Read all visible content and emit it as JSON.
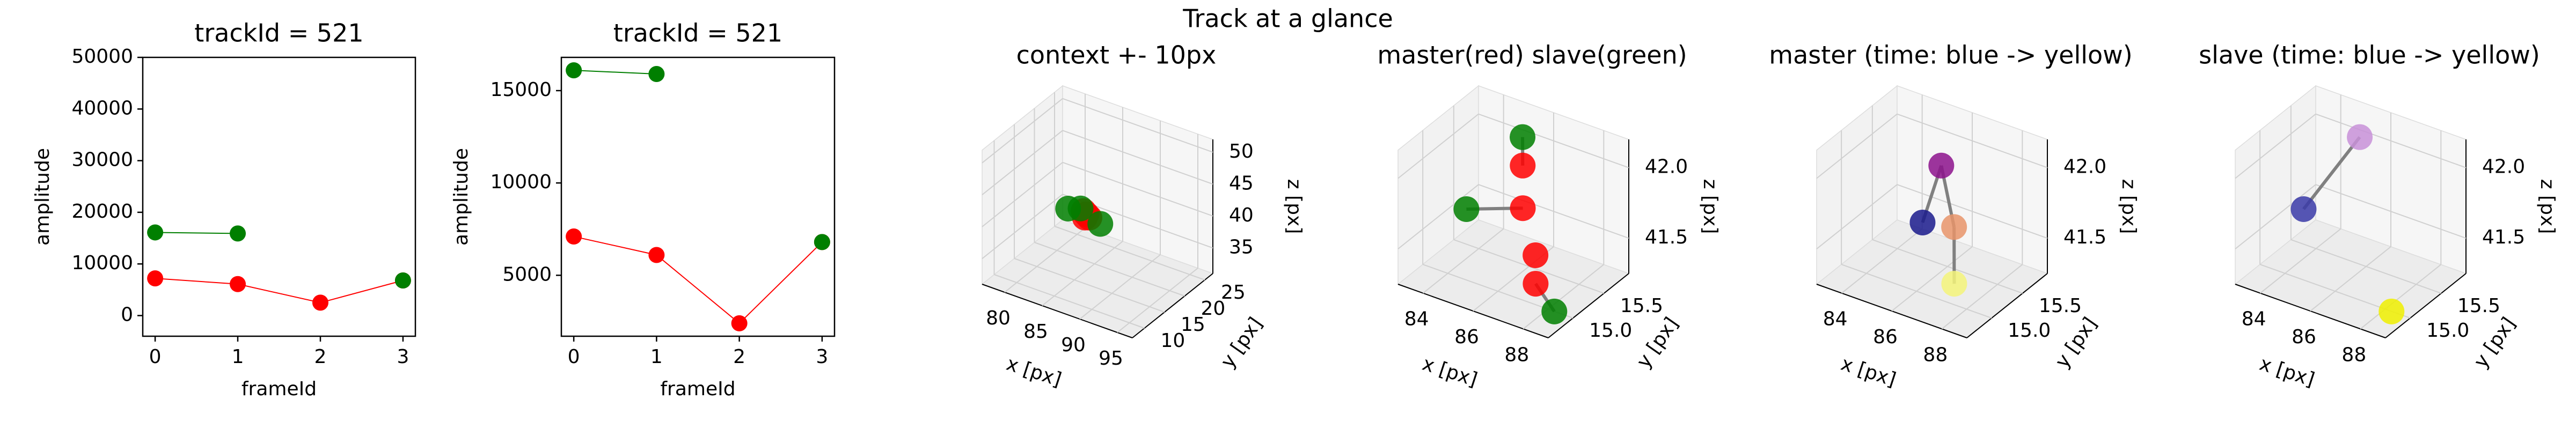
{
  "title": "Track at a glance",
  "chart_data": [
    {
      "type": "line",
      "title": "trackId = 521",
      "xlabel": "frameId",
      "ylabel": "amplitude",
      "x": [
        0,
        1,
        2,
        3
      ],
      "xlim": [
        -0.15,
        3.15
      ],
      "xticks": [
        0,
        1,
        2,
        3
      ],
      "ylim": [
        -4000,
        50000
      ],
      "yticks": [
        0,
        10000,
        20000,
        30000,
        40000,
        50000
      ],
      "series": [
        {
          "color": "#ff0000",
          "values": [
            7200,
            6100,
            2500,
            6800
          ]
        },
        {
          "color": "#007f00",
          "values": [
            16100,
            15900,
            null,
            6800
          ]
        }
      ]
    },
    {
      "type": "line",
      "title": "trackId = 521",
      "xlabel": "frameId",
      "ylabel": "amplitude",
      "x": [
        0,
        1,
        2,
        3
      ],
      "xlim": [
        -0.15,
        3.15
      ],
      "xticks": [
        0,
        1,
        2,
        3
      ],
      "ylim": [
        1700,
        16800
      ],
      "yticks": [
        5000,
        10000,
        15000
      ],
      "series": [
        {
          "color": "#ff0000",
          "values": [
            7100,
            6100,
            2400,
            6800
          ]
        },
        {
          "color": "#007f00",
          "values": [
            16100,
            15900,
            null,
            6800
          ]
        }
      ]
    },
    {
      "type": "scatter3d",
      "title": "context +- 10px",
      "xlabel": "x [px]",
      "ylabel": "y [px]",
      "zlabel": "z [px]",
      "xlim": [
        77,
        97
      ],
      "xticks": [
        80,
        85,
        90,
        95
      ],
      "ylim": [
        7,
        27
      ],
      "yticks": [
        10,
        15,
        20,
        25
      ],
      "zlim": [
        31,
        52
      ],
      "zticks": [
        35,
        40,
        45,
        50
      ],
      "lines": "none",
      "series": [
        {
          "color": "#ff0000",
          "x": [
            86,
            86.5,
            87,
            86.5
          ],
          "y": [
            15.4,
            15.2,
            15.0,
            14.8
          ],
          "z": [
            42,
            41.8,
            41.6,
            41.5
          ]
        },
        {
          "color": "#007f00",
          "x": [
            85.5,
            84,
            null,
            88.5
          ],
          "y": [
            15.6,
            15.3,
            null,
            14.9
          ],
          "z": [
            42.1,
            41.6,
            null,
            41.3
          ]
        }
      ]
    },
    {
      "type": "scatter3d",
      "title": "master(red) slave(green)",
      "xlabel": "x [px]",
      "ylabel": "y [px]",
      "zlabel": "z [px]",
      "xlim": [
        83,
        89
      ],
      "xticks": [
        84,
        86,
        88
      ],
      "ylim": [
        14.6,
        15.9
      ],
      "yticks": [
        {
          "value": 15,
          "label": "15.0"
        },
        15.5
      ],
      "zlim": [
        41.25,
        42.2
      ],
      "zticks": [
        41.5,
        {
          "value": 42,
          "label": "42.0"
        }
      ],
      "lines": "pairs",
      "series": [
        {
          "color": "#ff0000",
          "x": [
            86,
            86.5,
            87.5,
            88
          ],
          "y": [
            15.4,
            15.2,
            15.0,
            14.8
          ],
          "z": [
            42,
            41.8,
            41.6,
            41.5
          ]
        },
        {
          "color": "#007f00",
          "x": [
            85.5,
            84,
            null,
            88.5
          ],
          "y": [
            15.6,
            15.3,
            null,
            14.9
          ],
          "z": [
            42.1,
            41.6,
            null,
            41.3
          ]
        }
      ]
    },
    {
      "type": "scatter3d",
      "title": "master (time: blue -> yellow)",
      "xlabel": "x [px]",
      "ylabel": "y [px]",
      "zlabel": "z [px]",
      "xlim": [
        83,
        89
      ],
      "xticks": [
        84,
        86,
        88
      ],
      "ylim": [
        14.6,
        15.9
      ],
      "yticks": [
        {
          "value": 15,
          "label": "15.0"
        },
        15.5
      ],
      "zlim": [
        41.25,
        42.2
      ],
      "zticks": [
        41.5,
        {
          "value": 42,
          "label": "42.0"
        }
      ],
      "lines": "trajectory",
      "series": [
        {
          "colors": [
            "#1a1a8c",
            "#8c128c",
            "#e8946a",
            "#f4f47a"
          ],
          "x": [
            85.5,
            86,
            87.5,
            88
          ],
          "y": [
            15.3,
            15.4,
            15.0,
            14.8
          ],
          "z": [
            41.6,
            42,
            41.8,
            41.5
          ]
        }
      ]
    },
    {
      "type": "scatter3d",
      "title": "slave (time: blue -> yellow)",
      "xlabel": "x [px]",
      "ylabel": "y [px]",
      "zlabel": "z [px]",
      "xlim": [
        83,
        89
      ],
      "xticks": [
        84,
        86,
        88
      ],
      "ylim": [
        14.6,
        15.9
      ],
      "yticks": [
        {
          "value": 15,
          "label": "15.0"
        },
        15.5
      ],
      "zlim": [
        41.25,
        42.2
      ],
      "zticks": [
        41.5,
        {
          "value": 42,
          "label": "42.0"
        }
      ],
      "lines": "trajectory",
      "series": [
        {
          "colors": [
            "#3a3aa8",
            "#c890d8",
            null,
            "#f0f000"
          ],
          "x": [
            84,
            85.5,
            null,
            88.5
          ],
          "y": [
            15.3,
            15.6,
            null,
            14.9
          ],
          "z": [
            41.6,
            42.1,
            null,
            41.3
          ]
        }
      ]
    }
  ]
}
